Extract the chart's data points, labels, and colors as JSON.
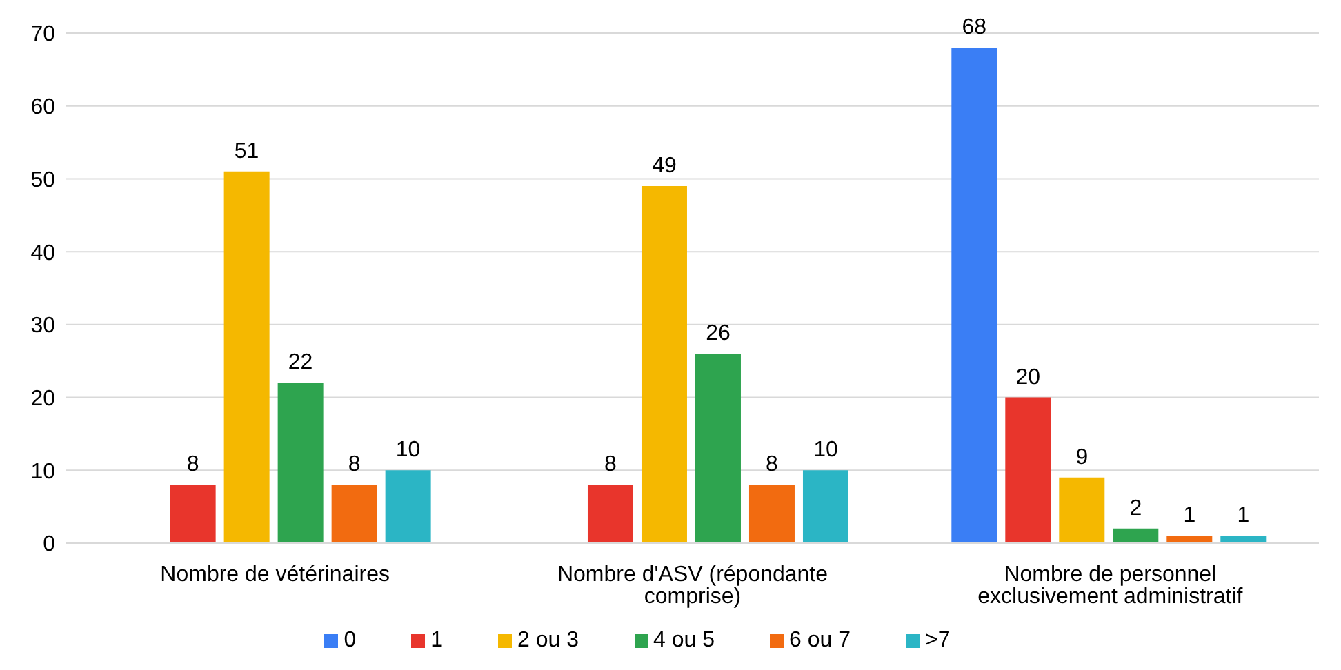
{
  "chart_data": {
    "type": "bar",
    "categories": [
      "Nombre de vétérinaires",
      "Nombre d'ASV (répondante comprise)",
      "Nombre de personnel exclusivement administratif"
    ],
    "series": [
      {
        "name": "0",
        "color": "#3a7ef5",
        "values": [
          null,
          null,
          68
        ]
      },
      {
        "name": "1",
        "color": "#e8352c",
        "values": [
          8,
          8,
          20
        ]
      },
      {
        "name": "2 ou 3",
        "color": "#f5b800",
        "values": [
          51,
          49,
          9
        ]
      },
      {
        "name": "4 ou 5",
        "color": "#2ea44f",
        "values": [
          22,
          26,
          2
        ]
      },
      {
        "name": "6 ou 7",
        "color": "#f26b10",
        "values": [
          8,
          8,
          1
        ]
      },
      {
        "name": ">7",
        "color": "#2bb5c5",
        "values": [
          10,
          10,
          1
        ]
      }
    ],
    "ylim": [
      0,
      70
    ],
    "yticks": [
      0,
      10,
      20,
      30,
      40,
      50,
      60,
      70
    ],
    "grid": "y",
    "legend": "bottom",
    "data_labels": true
  }
}
